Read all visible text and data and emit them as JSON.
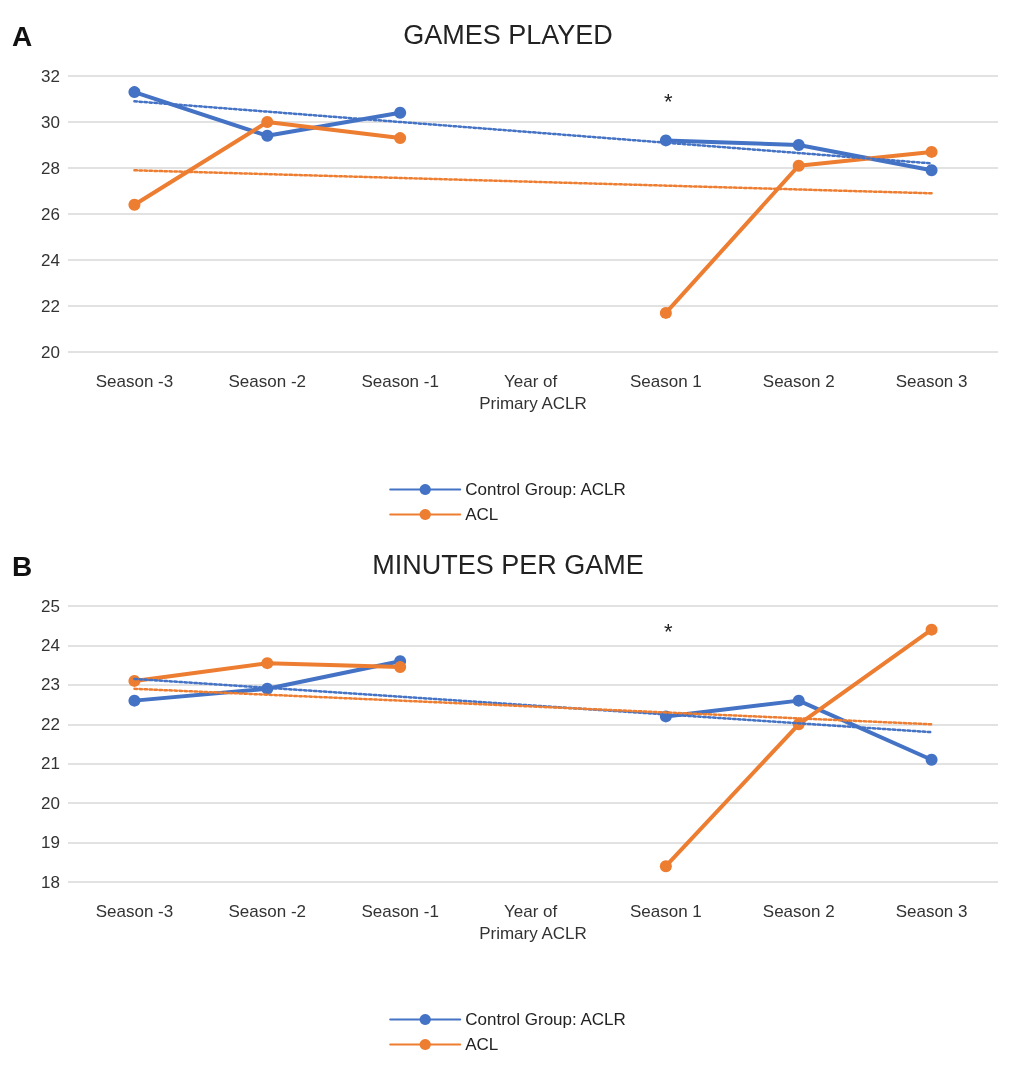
{
  "chart_data": [
    {
      "type": "line",
      "title": "GAMES PLAYED",
      "categories": [
        "Season -3",
        "Season -2",
        "Season -1",
        "Year of Primary ACLR",
        "Season 1",
        "Season 2",
        "Season 3"
      ],
      "series": [
        {
          "name": "Control Group: ACLR",
          "color": "#4472c4",
          "values": [
            31.3,
            29.4,
            30.4,
            null,
            29.2,
            29.0,
            27.9
          ],
          "marker": "circle",
          "line_style": "solid"
        },
        {
          "name": "ACL",
          "color": "#ed7d31",
          "values": [
            26.4,
            30.0,
            29.3,
            null,
            21.7,
            28.1,
            28.7
          ],
          "marker": "circle",
          "line_style": "solid"
        },
        {
          "type": "line",
          "color": "#4472c4",
          "values": [
            30.9,
            null,
            null,
            null,
            null,
            null,
            28.2
          ],
          "marker": "none",
          "line_style": "dotted"
        },
        {
          "type": "line",
          "color": "#ed7d31",
          "values": [
            27.9,
            null,
            null,
            null,
            null,
            null,
            26.9
          ],
          "marker": "none",
          "line_style": "dotted"
        }
      ],
      "ylim": [
        20,
        32
      ],
      "yticks": [
        20,
        22,
        24,
        26,
        28,
        30,
        32
      ],
      "grid": "y",
      "legend": "bottom",
      "annotations": [
        "A",
        "*"
      ]
    },
    {
      "type": "line",
      "title": "MINUTES PER GAME",
      "categories": [
        "Season -3",
        "Season -2",
        "Season -1",
        "Year of Primary ACLR",
        "Season 1",
        "Season 2",
        "Season 3"
      ],
      "series": [
        {
          "name": "Control Group: ACLR",
          "color": "#4472c4",
          "values": [
            22.6,
            22.9,
            23.6,
            null,
            22.2,
            22.6,
            21.1
          ],
          "marker": "circle",
          "line_style": "solid"
        },
        {
          "name": "ACL",
          "color": "#ed7d31",
          "values": [
            23.1,
            23.55,
            23.45,
            null,
            18.4,
            22.0,
            24.4
          ],
          "marker": "circle",
          "line_style": "solid"
        },
        {
          "type": "line",
          "color": "#4472c4",
          "values": [
            23.15,
            null,
            null,
            null,
            null,
            null,
            21.8
          ],
          "marker": "none",
          "line_style": "dotted"
        },
        {
          "type": "line",
          "color": "#ed7d31",
          "values": [
            22.9,
            null,
            null,
            null,
            null,
            null,
            22.0
          ],
          "marker": "none",
          "line_style": "dotted"
        }
      ],
      "ylim": [
        18,
        25
      ],
      "yticks": [
        18,
        19,
        20,
        21,
        22,
        23,
        24,
        25
      ],
      "grid": "y",
      "legend": "bottom",
      "annotations": [
        "B",
        "*"
      ]
    }
  ]
}
